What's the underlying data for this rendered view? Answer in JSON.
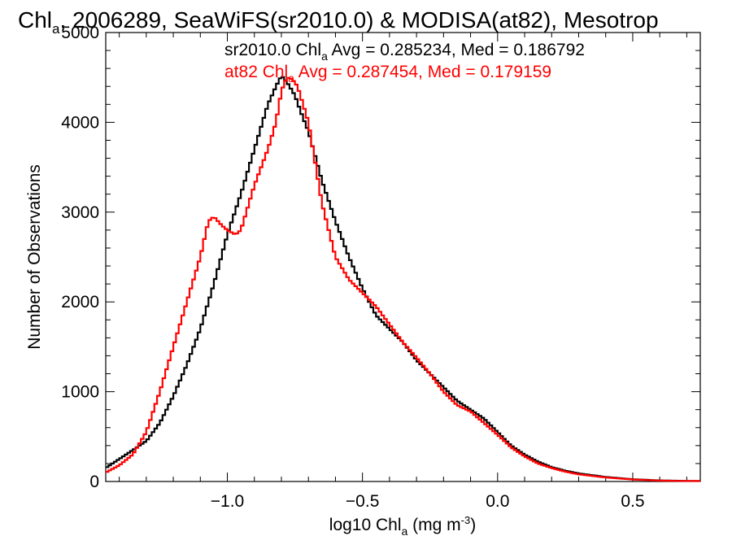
{
  "chart_data": {
    "type": "line",
    "title": {
      "parts": [
        {
          "text": "Chl",
          "sub": false
        },
        {
          "text": "a",
          "sub": true
        },
        {
          "text": ", 2006289, SeaWiFS(sr2010.0) & MODISA(at82), Mesotrop",
          "sub": false
        }
      ]
    },
    "xlabel": {
      "parts": [
        {
          "text": "log10 Chl",
          "style": "normal"
        },
        {
          "text": "a",
          "style": "sub"
        },
        {
          "text": " (mg m",
          "style": "normal"
        },
        {
          "text": "-3",
          "style": "sup"
        },
        {
          "text": ")",
          "style": "normal"
        }
      ]
    },
    "ylabel": "Number of Observations",
    "xlim": [
      -1.45,
      0.75
    ],
    "ylim": [
      0,
      5000
    ],
    "x_ticks": [
      -1.0,
      -0.5,
      0.0,
      0.5
    ],
    "x_tick_labels": [
      "−1.0",
      "−0.5",
      "0.0",
      "0.5"
    ],
    "y_ticks": [
      0,
      1000,
      2000,
      3000,
      4000,
      5000
    ],
    "y_tick_labels": [
      "0",
      "1000",
      "2000",
      "3000",
      "4000",
      "5000"
    ],
    "legend_placement": "top-right",
    "series": [
      {
        "name": "sr2010.0",
        "color": "#000000",
        "label_parts": [
          {
            "text": "sr2010.0 Chl",
            "sub": false
          },
          {
            "text": "a",
            "sub": true
          },
          {
            "text": " Avg = 0.285234, Med = 0.186792",
            "sub": false
          }
        ],
        "x": [
          -1.45,
          -1.4,
          -1.35,
          -1.3,
          -1.25,
          -1.2,
          -1.15,
          -1.1,
          -1.05,
          -1.0,
          -0.95,
          -0.9,
          -0.85,
          -0.82,
          -0.8,
          -0.78,
          -0.75,
          -0.72,
          -0.7,
          -0.65,
          -0.6,
          -0.55,
          -0.5,
          -0.45,
          -0.4,
          -0.35,
          -0.3,
          -0.25,
          -0.2,
          -0.15,
          -0.1,
          -0.05,
          0.0,
          0.05,
          0.1,
          0.15,
          0.2,
          0.25,
          0.3,
          0.4,
          0.5,
          0.6,
          0.7,
          0.75
        ],
        "y": [
          150,
          250,
          350,
          450,
          650,
          950,
          1300,
          1700,
          2200,
          2750,
          3200,
          3700,
          4200,
          4400,
          4520,
          4450,
          4300,
          4050,
          3900,
          3350,
          2900,
          2500,
          2150,
          1850,
          1700,
          1550,
          1350,
          1200,
          1050,
          900,
          800,
          700,
          550,
          400,
          300,
          220,
          160,
          120,
          90,
          50,
          25,
          12,
          6,
          5
        ]
      },
      {
        "name": "at82",
        "color": "#ff0000",
        "label_parts": [
          {
            "text": "at82 Chl",
            "sub": false
          },
          {
            "text": "a",
            "sub": true
          },
          {
            "text": " Avg = 0.287454, Med = 0.179159",
            "sub": false
          }
        ],
        "x": [
          -1.45,
          -1.4,
          -1.35,
          -1.3,
          -1.25,
          -1.2,
          -1.15,
          -1.1,
          -1.07,
          -1.05,
          -1.02,
          -1.0,
          -0.97,
          -0.95,
          -0.9,
          -0.85,
          -0.82,
          -0.8,
          -0.78,
          -0.76,
          -0.74,
          -0.72,
          -0.7,
          -0.65,
          -0.6,
          -0.55,
          -0.5,
          -0.45,
          -0.4,
          -0.35,
          -0.3,
          -0.25,
          -0.2,
          -0.15,
          -0.1,
          -0.05,
          0.0,
          0.05,
          0.1,
          0.15,
          0.2,
          0.25,
          0.3,
          0.4,
          0.5,
          0.6,
          0.7,
          0.75
        ],
        "y": [
          100,
          180,
          300,
          550,
          1000,
          1500,
          2000,
          2500,
          2900,
          2950,
          2850,
          2800,
          2750,
          2800,
          3300,
          3700,
          4000,
          4350,
          4500,
          4480,
          4400,
          4200,
          4000,
          3100,
          2500,
          2250,
          2100,
          1950,
          1750,
          1550,
          1380,
          1200,
          1000,
          850,
          780,
          650,
          520,
          380,
          280,
          200,
          150,
          110,
          80,
          45,
          22,
          10,
          5,
          5
        ]
      }
    ]
  }
}
